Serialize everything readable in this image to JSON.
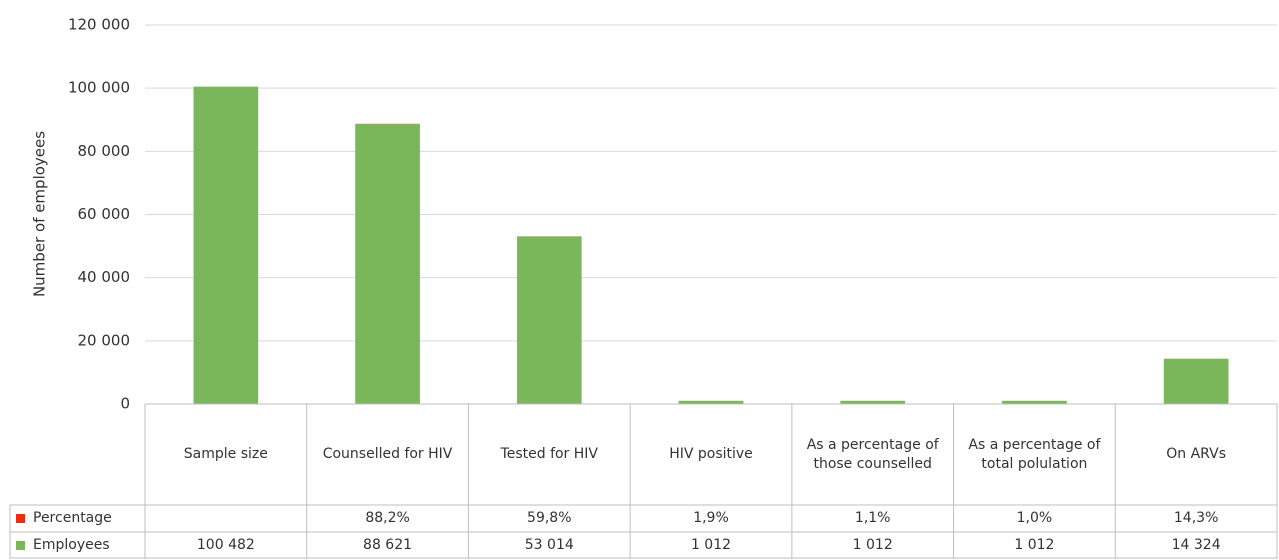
{
  "chart_data": {
    "type": "bar",
    "stacked": true,
    "y_axis_label": "Number of employees",
    "categories": [
      "Sample size",
      "Counselled for HIV",
      "Tested for HIV",
      "HIV positive",
      "As a percentage of those counselled",
      "As a percentage of total polulation",
      "On ARVs"
    ],
    "series": [
      {
        "name": "Employees",
        "color": "#7ab65a",
        "values": [
          100482,
          88621,
          53014,
          1012,
          1012,
          1012,
          14324
        ],
        "value_labels": [
          "100 482",
          "88 621",
          "53 014",
          "1 012",
          "1 012",
          "1 012",
          "14 324"
        ]
      },
      {
        "name": "Percentage",
        "color": "#ee2a10",
        "values": [
          null,
          88.2,
          59.8,
          1.9,
          1.1,
          1.0,
          14.3
        ],
        "value_labels": [
          null,
          "88,2%",
          "59,8%",
          "1,9%",
          "1,1%",
          "1,0%",
          "14,3%"
        ]
      }
    ],
    "ylim": [
      0,
      120000
    ],
    "yticks": [
      0,
      {
        "value": 20000,
        "label": "20 000"
      },
      {
        "value": 40000,
        "label": "40 000"
      },
      {
        "value": 60000,
        "label": "60 000"
      },
      {
        "value": 80000,
        "label": "80 000"
      },
      {
        "value": 100000,
        "label": "100 000"
      },
      {
        "value": 120000,
        "label": "120 000"
      }
    ],
    "grid": true,
    "data_table": true
  }
}
